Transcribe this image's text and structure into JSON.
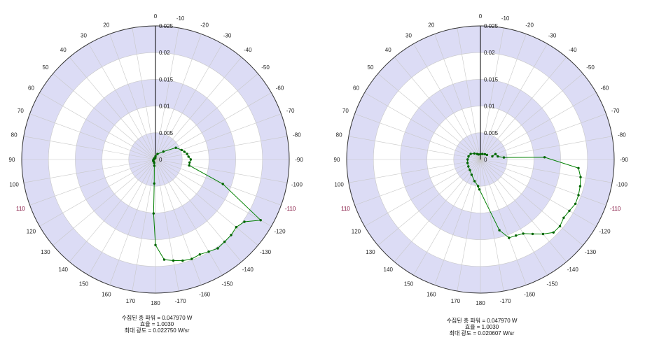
{
  "colors": {
    "band": "#dcdcf5",
    "grid": "#c8c8c8",
    "axis": "#000000",
    "series": "#008000",
    "marker": "#006400"
  },
  "chart_data": [
    {
      "type": "polar-line",
      "angle_unit": "degrees",
      "angle_ticks": [
        0,
        -10,
        -20,
        -30,
        -40,
        -50,
        -60,
        -70,
        -80,
        -90,
        -100,
        -110,
        -120,
        -130,
        -140,
        -150,
        -160,
        -170,
        180,
        170,
        160,
        150,
        140,
        130,
        120,
        110,
        100,
        90,
        80,
        70,
        60,
        50,
        40,
        30,
        20,
        10
      ],
      "angle_tick_labels": [
        "0",
        "-10",
        "-20",
        "-30",
        "-40",
        "-50",
        "-60",
        "-70",
        "-80",
        "-90",
        "-100",
        "-110",
        "-120",
        "-130",
        "-140",
        "-150",
        "-160",
        "-170",
        "180",
        "170",
        "160",
        "150",
        "140",
        "130",
        "120",
        "110",
        "100",
        "90",
        "80",
        "70",
        "60",
        "50",
        "40",
        "30",
        "20",
        ""
      ],
      "rlim": [
        0,
        0.025
      ],
      "r_ticks": [
        0,
        0.005,
        0.01,
        0.015,
        0.02,
        0.025
      ],
      "r_tick_labels": [
        "0",
        "0.005",
        "0.01",
        "0.015",
        "0.02",
        "0.025"
      ],
      "grid": true,
      "series": [
        {
          "points": [
            {
              "angle": 5,
              "r": 0.0003
            },
            {
              "angle": 0,
              "r": 0.0006
            },
            {
              "angle": -20,
              "r": 0.0011
            },
            {
              "angle": -45,
              "r": 0.0021
            },
            {
              "angle": -60,
              "r": 0.0044
            },
            {
              "angle": -70,
              "r": 0.0052
            },
            {
              "angle": -75,
              "r": 0.0056
            },
            {
              "angle": -80,
              "r": 0.006
            },
            {
              "angle": -85,
              "r": 0.0062
            },
            {
              "angle": -90,
              "r": 0.0066
            },
            {
              "angle": -95,
              "r": 0.0064
            },
            {
              "angle": -100,
              "r": 0.0064
            },
            {
              "angle": -110,
              "r": 0.0134
            },
            {
              "angle": -120,
              "r": 0.0227
            },
            {
              "angle": -125,
              "r": 0.0203
            },
            {
              "angle": -130,
              "r": 0.0197
            },
            {
              "angle": -135,
              "r": 0.02
            },
            {
              "angle": -140,
              "r": 0.0201
            },
            {
              "angle": -145,
              "r": 0.0203
            },
            {
              "angle": -150,
              "r": 0.0199
            },
            {
              "angle": -155,
              "r": 0.0196
            },
            {
              "angle": -160,
              "r": 0.0198
            },
            {
              "angle": -165,
              "r": 0.0196
            },
            {
              "angle": -170,
              "r": 0.0192
            },
            {
              "angle": -175,
              "r": 0.0188
            },
            {
              "angle": 180,
              "r": 0.016
            },
            {
              "angle": 178,
              "r": 0.0101
            },
            {
              "angle": 177,
              "r": 0.0045
            },
            {
              "angle": 170,
              "r": 0.0012
            },
            {
              "angle": 160,
              "r": 0.0007
            },
            {
              "angle": 140,
              "r": 0.0005
            },
            {
              "angle": 120,
              "r": 0.0005
            },
            {
              "angle": 100,
              "r": 0.0004
            },
            {
              "angle": 80,
              "r": 0.0003
            },
            {
              "angle": 60,
              "r": 0.0003
            },
            {
              "angle": 40,
              "r": 0.0003
            }
          ]
        }
      ],
      "summary": [
        "수집된 총 파워 = 0.047970  W",
        "효율 = 1.0030",
        "최대 광도 = 0.022750  W/sr"
      ]
    },
    {
      "type": "polar-line",
      "angle_unit": "degrees",
      "angle_ticks": [
        0,
        -10,
        -20,
        -30,
        -40,
        -50,
        -60,
        -70,
        -80,
        -90,
        -100,
        -110,
        -120,
        -130,
        -140,
        -150,
        -160,
        -170,
        180,
        170,
        160,
        150,
        140,
        130,
        120,
        110,
        100,
        90,
        80,
        70,
        60,
        50,
        40,
        30,
        20,
        10
      ],
      "angle_tick_labels": [
        "0",
        "-10",
        "-20",
        "-30",
        "-40",
        "-50",
        "-60",
        "-70",
        "-80",
        "-90",
        "-100",
        "-110",
        "-120",
        "-130",
        "-140",
        "-150",
        "-160",
        "-170",
        "180",
        "170",
        "160",
        "150",
        "140",
        "130",
        "120",
        "110",
        "100",
        "90",
        "80",
        "70",
        "60",
        "50",
        "40",
        "30",
        "20",
        ""
      ],
      "rlim": [
        0,
        0.025
      ],
      "r_ticks": [
        0,
        0.005,
        0.01,
        0.015,
        0.02,
        0.025
      ],
      "r_tick_labels": [
        "0",
        "0.005",
        "0.01",
        "0.015",
        "0.02",
        "0.025"
      ],
      "grid": true,
      "series": [
        {
          "points": [
            {
              "angle": -75,
              "r": 0.0023
            },
            {
              "angle": -70,
              "r": 0.003
            },
            {
              "angle": -80,
              "r": 0.0033
            },
            {
              "angle": -85,
              "r": 0.0044
            },
            {
              "angle": -88,
              "r": 0.012
            },
            {
              "angle": -95,
              "r": 0.0184
            },
            {
              "angle": -100,
              "r": 0.019
            },
            {
              "angle": -105,
              "r": 0.0193
            },
            {
              "angle": -110,
              "r": 0.0195
            },
            {
              "angle": -115,
              "r": 0.0196
            },
            {
              "angle": -120,
              "r": 0.0192
            },
            {
              "angle": -125,
              "r": 0.019
            },
            {
              "angle": -130,
              "r": 0.0194
            },
            {
              "angle": -135,
              "r": 0.0193
            },
            {
              "angle": -140,
              "r": 0.0182
            },
            {
              "angle": -145,
              "r": 0.017
            },
            {
              "angle": -150,
              "r": 0.016
            },
            {
              "angle": -155,
              "r": 0.0157
            },
            {
              "angle": -160,
              "r": 0.0156
            },
            {
              "angle": -165,
              "r": 0.0137
            },
            {
              "angle": 178,
              "r": 0.0056
            },
            {
              "angle": 175,
              "r": 0.005
            },
            {
              "angle": 165,
              "r": 0.0042
            },
            {
              "angle": 150,
              "r": 0.0033
            },
            {
              "angle": 135,
              "r": 0.0028
            },
            {
              "angle": 120,
              "r": 0.0026
            },
            {
              "angle": 105,
              "r": 0.0025
            },
            {
              "angle": 90,
              "r": 0.0024
            },
            {
              "angle": 75,
              "r": 0.0023
            },
            {
              "angle": 60,
              "r": 0.0021
            },
            {
              "angle": 45,
              "r": 0.0016
            },
            {
              "angle": 30,
              "r": 0.0012
            },
            {
              "angle": 20,
              "r": 0.001
            },
            {
              "angle": 0,
              "r": 0.001
            },
            {
              "angle": -20,
              "r": 0.0011
            },
            {
              "angle": -40,
              "r": 0.0013
            },
            {
              "angle": -55,
              "r": 0.0015
            }
          ]
        }
      ],
      "summary": [
        "수집된 총 파워 = 0.047970  W",
        "효율 = 1.0030",
        "최대 광도 = 0.020607  W/sr"
      ]
    }
  ]
}
